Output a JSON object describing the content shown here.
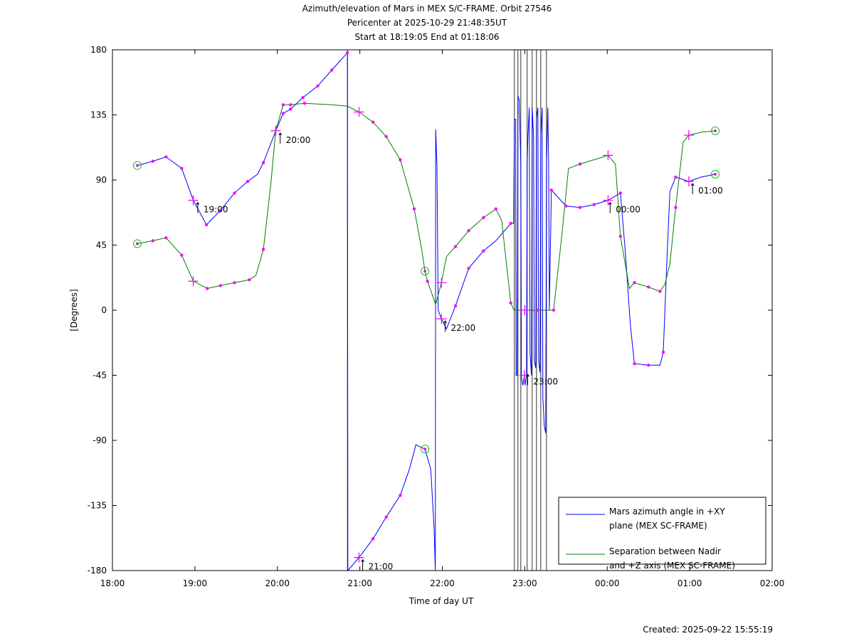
{
  "chart_data": {
    "type": "line",
    "title": [
      "Azimuth/elevation of Mars in MEX S/C-FRAME.  Orbit 27546",
      "Pericenter at 2025-10-29 21:48:35UT",
      "Start at 18:19:05 End at 01:18:06"
    ],
    "xlabel": "Time of day UT",
    "ylabel": "[Degrees]",
    "x_unit": "hours after 18:00 UT",
    "xlim": [
      0,
      8
    ],
    "ylim": [
      -180,
      180
    ],
    "xticks": [
      0,
      1,
      2,
      3,
      4,
      5,
      6,
      7,
      8
    ],
    "xtick_labels": [
      "18:00",
      "19:00",
      "20:00",
      "21:00",
      "22:00",
      "23:00",
      "00:00",
      "01:00",
      "02:00"
    ],
    "yticks": [
      180,
      135,
      90,
      45,
      0,
      -45,
      -90,
      -135,
      -180
    ],
    "ytick_labels": [
      "180",
      "135",
      "90",
      "45",
      "0",
      "-45",
      "-90",
      "-135",
      "-180"
    ],
    "legend_position": "bottom-right",
    "footer": "Created: 2025-09-22 15:55:19",
    "marker_color": "#ff00ff",
    "event_color": "#00cc00",
    "series": [
      {
        "name": "Mars azimuth angle in +XY plane (MEX SC-FRAME)",
        "legend": [
          "Mars azimuth angle in +XY",
          "plane (MEX SC-FRAME)"
        ],
        "color": "#0000ff",
        "points": [
          [
            0.302,
            100,
            3
          ],
          [
            0.49,
            103,
            1
          ],
          [
            0.65,
            106,
            1
          ],
          [
            0.84,
            98,
            1
          ],
          [
            0.98,
            76,
            2
          ],
          [
            1.14,
            59,
            1
          ],
          [
            1.31,
            69,
            1
          ],
          [
            1.48,
            81,
            1
          ],
          [
            1.64,
            89,
            1
          ],
          [
            1.76,
            94,
            0
          ],
          [
            1.83,
            102,
            1
          ],
          [
            1.98,
            124,
            2
          ],
          [
            2.07,
            136,
            1
          ],
          [
            2.16,
            139,
            1
          ],
          [
            2.31,
            147,
            1
          ],
          [
            2.49,
            155,
            1
          ],
          [
            2.66,
            166,
            1
          ],
          [
            2.85,
            178,
            1
          ],
          [
            2.855,
            -180,
            0
          ],
          [
            2.99,
            -171,
            2
          ],
          [
            3.16,
            -158,
            1
          ],
          [
            3.32,
            -143,
            1
          ],
          [
            3.49,
            -128,
            1
          ],
          [
            3.6,
            -110,
            0
          ],
          [
            3.68,
            -93,
            0
          ],
          [
            3.75,
            -95,
            0
          ],
          [
            3.79,
            -96,
            3
          ],
          [
            3.86,
            -110,
            0
          ],
          [
            3.9,
            -150,
            0
          ],
          [
            3.915,
            -180,
            0
          ],
          [
            3.92,
            125,
            0
          ],
          [
            3.935,
            100,
            0
          ],
          [
            3.95,
            0,
            0
          ],
          [
            3.99,
            -6,
            2
          ],
          [
            4.05,
            -13,
            0
          ],
          [
            4.16,
            3,
            1
          ],
          [
            4.32,
            29,
            1
          ],
          [
            4.5,
            41,
            1
          ],
          [
            4.65,
            48,
            0
          ],
          [
            4.83,
            60,
            1
          ],
          [
            4.866,
            60,
            0
          ],
          [
            4.874,
            132,
            0
          ],
          [
            4.891,
            132,
            0
          ],
          [
            4.895,
            -45,
            0
          ],
          [
            4.908,
            -45,
            0
          ],
          [
            4.917,
            148,
            0
          ],
          [
            4.934,
            145,
            0
          ],
          [
            4.952,
            100,
            0
          ],
          [
            4.96,
            -47,
            0
          ],
          [
            4.977,
            -52,
            0
          ],
          [
            4.994,
            -45,
            2
          ],
          [
            5.003,
            -52,
            0
          ],
          [
            5.021,
            -45,
            0
          ],
          [
            5.029,
            100,
            0
          ],
          [
            5.038,
            120,
            0
          ],
          [
            5.055,
            140,
            0
          ],
          [
            5.064,
            -30,
            0
          ],
          [
            5.081,
            -45,
            0
          ],
          [
            5.09,
            140,
            0
          ],
          [
            5.107,
            120,
            0
          ],
          [
            5.116,
            -35,
            0
          ],
          [
            5.133,
            -40,
            0
          ],
          [
            5.142,
            132,
            0
          ],
          [
            5.159,
            140,
            0
          ],
          [
            5.168,
            -35,
            0
          ],
          [
            5.185,
            -43,
            0
          ],
          [
            5.194,
            120,
            0
          ],
          [
            5.211,
            140,
            0
          ],
          [
            5.219,
            -60,
            0
          ],
          [
            5.237,
            -80,
            0
          ],
          [
            5.254,
            -85,
            0
          ],
          [
            5.263,
            100,
            0
          ],
          [
            5.28,
            140,
            0
          ],
          [
            5.289,
            100,
            0
          ],
          [
            5.298,
            0,
            0
          ],
          [
            5.323,
            83,
            1
          ],
          [
            5.5,
            72,
            1
          ],
          [
            5.67,
            71,
            1
          ],
          [
            5.84,
            73,
            1
          ],
          [
            6.01,
            76,
            2
          ],
          [
            6.16,
            81,
            1
          ],
          [
            6.22,
            40,
            0
          ],
          [
            6.28,
            -10,
            0
          ],
          [
            6.33,
            -37,
            1
          ],
          [
            6.5,
            -38,
            1
          ],
          [
            6.64,
            -38,
            0
          ],
          [
            6.68,
            -29,
            1
          ],
          [
            6.72,
            30,
            0
          ],
          [
            6.76,
            82,
            0
          ],
          [
            6.83,
            92,
            1
          ],
          [
            6.99,
            89,
            2
          ],
          [
            7.14,
            92,
            0
          ],
          [
            7.31,
            94,
            3
          ]
        ]
      },
      {
        "name": "Separation between Nadir and +Z axis (MEX SC-FRAME)",
        "legend": [
          "Separation between Nadir",
          "and +Z axis (MEX SC-FRAME)"
        ],
        "color": "#008000",
        "points": [
          [
            0.302,
            46,
            3
          ],
          [
            0.49,
            48,
            1
          ],
          [
            0.65,
            50,
            1
          ],
          [
            0.84,
            38,
            1
          ],
          [
            0.98,
            20,
            2
          ],
          [
            1.15,
            15,
            1
          ],
          [
            1.31,
            17,
            1
          ],
          [
            1.48,
            19,
            1
          ],
          [
            1.66,
            21,
            1
          ],
          [
            1.74,
            24,
            0
          ],
          [
            1.83,
            42,
            1
          ],
          [
            1.92,
            87,
            0
          ],
          [
            1.98,
            124,
            2
          ],
          [
            2.07,
            142,
            1
          ],
          [
            2.16,
            142,
            1
          ],
          [
            2.33,
            143,
            1
          ],
          [
            2.66,
            142,
            0
          ],
          [
            2.85,
            141,
            0
          ],
          [
            2.99,
            137,
            2
          ],
          [
            3.16,
            130,
            1
          ],
          [
            3.32,
            120,
            1
          ],
          [
            3.49,
            104,
            1
          ],
          [
            3.66,
            70,
            1
          ],
          [
            3.75,
            42,
            0
          ],
          [
            3.79,
            27,
            3
          ],
          [
            3.82,
            20,
            1
          ],
          [
            3.92,
            4,
            0
          ],
          [
            3.99,
            19,
            2
          ],
          [
            4.05,
            37,
            0
          ],
          [
            4.16,
            44,
            1
          ],
          [
            4.32,
            55,
            1
          ],
          [
            4.5,
            64,
            1
          ],
          [
            4.65,
            70,
            1
          ],
          [
            4.72,
            62,
            0
          ],
          [
            4.83,
            5,
            1
          ],
          [
            4.87,
            0,
            0
          ],
          [
            5.0,
            0,
            2
          ],
          [
            5.15,
            0,
            1
          ],
          [
            5.35,
            0,
            1
          ],
          [
            5.45,
            52,
            0
          ],
          [
            5.53,
            98,
            0
          ],
          [
            5.67,
            101,
            1
          ],
          [
            5.84,
            104,
            0
          ],
          [
            6.01,
            107,
            2
          ],
          [
            6.1,
            101,
            0
          ],
          [
            6.16,
            51,
            1
          ],
          [
            6.27,
            15,
            0
          ],
          [
            6.33,
            19,
            1
          ],
          [
            6.5,
            16,
            1
          ],
          [
            6.64,
            13,
            1
          ],
          [
            6.7,
            18,
            0
          ],
          [
            6.76,
            32,
            0
          ],
          [
            6.83,
            71,
            1
          ],
          [
            6.92,
            116,
            0
          ],
          [
            6.99,
            121,
            2
          ],
          [
            7.14,
            123,
            0
          ],
          [
            7.31,
            124,
            3
          ]
        ]
      }
    ],
    "annotations": [
      {
        "text": "19:00",
        "x": 1.0,
        "y": 76
      },
      {
        "text": "20:00",
        "x": 2.0,
        "y": 124
      },
      {
        "text": "21:00",
        "x": 3.0,
        "y": -171
      },
      {
        "text": "22:00",
        "x": 4.0,
        "y": -6
      },
      {
        "text": "23:00",
        "x": 5.0,
        "y": -43
      },
      {
        "text": "00:00",
        "x": 6.0,
        "y": 76
      },
      {
        "text": "01:00",
        "x": 7.0,
        "y": 89
      }
    ],
    "vertical_connectors": [
      2.85,
      4.874,
      4.917,
      4.952,
      5.029,
      5.09,
      5.142,
      5.194,
      5.263
    ]
  }
}
